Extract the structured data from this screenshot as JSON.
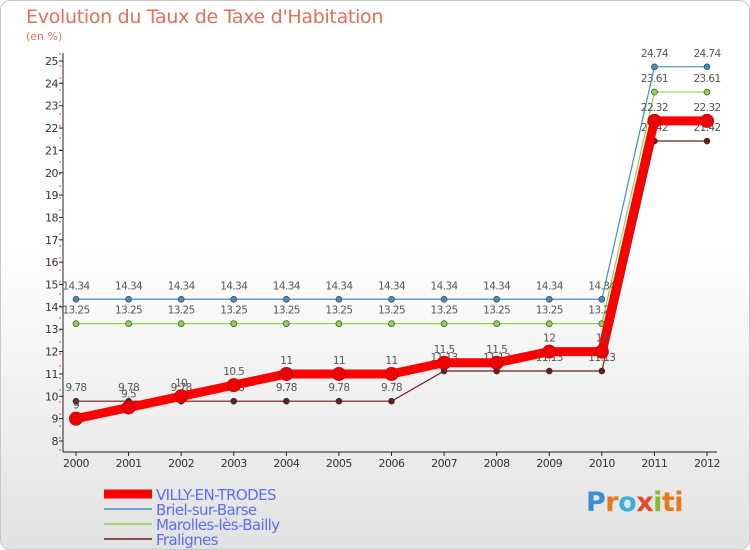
{
  "chart_data": {
    "type": "line",
    "title": "Evolution du Taux de Taxe d'Habitation",
    "subtitle": "(en %)",
    "xlabel": "",
    "ylabel": "",
    "ylim": [
      8,
      25
    ],
    "yticks": [
      "8",
      "9",
      "10",
      "11",
      "12",
      "13",
      "14",
      "15",
      "16",
      "17",
      "18",
      "19",
      "20",
      "21",
      "22",
      "23",
      "24",
      "25"
    ],
    "categories": [
      "2000",
      "2001",
      "2002",
      "2003",
      "2004",
      "2005",
      "2006",
      "2007",
      "2008",
      "2009",
      "2010",
      "2011",
      "2012"
    ],
    "series": [
      {
        "name": "Fralignes",
        "color": "#6b1d1d",
        "values": [
          9.78,
          9.78,
          9.78,
          9.78,
          9.78,
          9.78,
          9.78,
          11.13,
          11.13,
          11.13,
          11.13,
          21.42,
          21.42
        ],
        "labels": [
          "9.78",
          "9.78",
          "9.78",
          "9.78",
          "9.78",
          "9.78",
          "9.78",
          "11.13",
          "11.13",
          "11.13",
          "11.13",
          "21.42",
          "21.42"
        ]
      },
      {
        "name": "Marolles-lès-Bailly",
        "color": "#88d84a",
        "values": [
          13.25,
          13.25,
          13.25,
          13.25,
          13.25,
          13.25,
          13.25,
          13.25,
          13.25,
          13.25,
          13.25,
          23.61,
          23.61
        ],
        "labels": [
          "13.25",
          "13.25",
          "13.25",
          "13.25",
          "13.25",
          "13.25",
          "13.25",
          "13.25",
          "13.25",
          "13.25",
          "13.25",
          "23.61",
          "23.61"
        ]
      },
      {
        "name": "Briel-sur-Barse",
        "color": "#4a8cc0",
        "values": [
          14.34,
          14.34,
          14.34,
          14.34,
          14.34,
          14.34,
          14.34,
          14.34,
          14.34,
          14.34,
          14.34,
          24.74,
          24.74
        ],
        "labels": [
          "14.34",
          "14.34",
          "14.34",
          "14.34",
          "14.34",
          "14.34",
          "14.34",
          "14.34",
          "14.34",
          "14.34",
          "14.34",
          "24.74",
          "24.74"
        ]
      },
      {
        "name": "VILLY-EN-TRODES",
        "color": "#ff0000",
        "values": [
          9,
          9.5,
          10,
          10.5,
          11,
          11,
          11,
          11.5,
          11.5,
          12,
          12,
          22.32,
          22.32
        ],
        "labels": [
          "9",
          "9.5",
          "10",
          "10.5",
          "11",
          "11",
          "11",
          "11.5",
          "11.5",
          "12",
          "12",
          "22.32",
          "22.32"
        ]
      }
    ],
    "legend": [
      "VILLY-EN-TRODES",
      "Briel-sur-Barse",
      "Marolles-lès-Bailly",
      "Fralignes"
    ],
    "legend_position": "bottom-left"
  },
  "branding": {
    "logo_letters": [
      "P",
      "r",
      "o",
      "x",
      "i",
      "ti"
    ]
  }
}
